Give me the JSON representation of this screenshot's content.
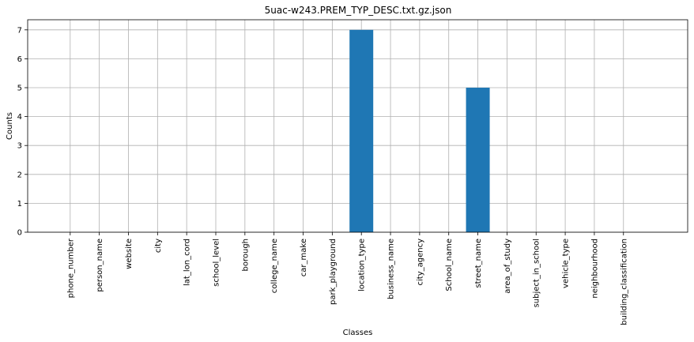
{
  "chart_data": {
    "type": "bar",
    "title": "5uac-w243.PREM_TYP_DESC.txt.gz.json",
    "xlabel": "Classes",
    "ylabel": "Counts",
    "categories": [
      "phone_number",
      "person_name",
      "website",
      "city",
      "lat_lon_cord",
      "school_level",
      "borough",
      "college_name",
      "car_make",
      "park_playground",
      "location_type",
      "business_name",
      "city_agency",
      "School_name",
      "street_name",
      "area_of_study",
      "subject_in_school",
      "vehicle_type",
      "neighbourhood",
      "building_classification"
    ],
    "values": [
      0,
      0,
      0,
      0,
      0,
      0,
      0,
      0,
      0,
      0,
      7,
      0,
      0,
      0,
      5,
      0,
      0,
      0,
      0,
      0
    ],
    "ylim": [
      0,
      7.35
    ],
    "yticks": [
      0,
      1,
      2,
      3,
      4,
      5,
      6,
      7
    ],
    "grid": true,
    "bar_color": "#1f77b4",
    "grid_color": "#b0b0b0"
  }
}
